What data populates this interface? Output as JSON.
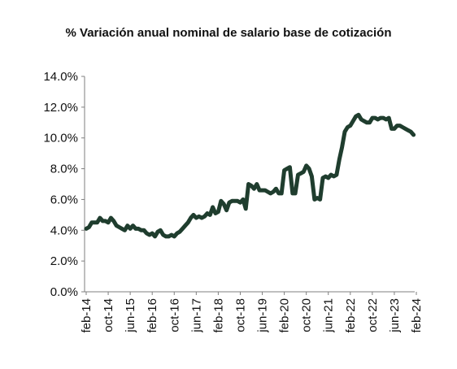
{
  "chart_data": {
    "type": "line",
    "title": "% Variación anual nominal de salario base de cotización",
    "xlabel": "",
    "ylabel": "",
    "ylim": [
      0,
      14
    ],
    "y_ticks": [
      "0.0%",
      "2.0%",
      "4.0%",
      "6.0%",
      "8.0%",
      "10.0%",
      "12.0%",
      "14.0%"
    ],
    "x_ticks": [
      "feb-14",
      "oct-14",
      "jun-15",
      "feb-16",
      "oct-16",
      "jun-17",
      "feb-18",
      "oct-18",
      "jun-19",
      "feb-20",
      "oct-20",
      "jun-21",
      "feb-22",
      "oct-22",
      "jun-23",
      "feb-24"
    ],
    "grid": false,
    "legend": "none",
    "series": [
      {
        "color": "#1f3d2e",
        "points": [
          [
            "feb-14",
            4.1
          ],
          [
            "mar-14",
            4.2
          ],
          [
            "abr-14",
            4.5
          ],
          [
            "may-14",
            4.5
          ],
          [
            "jun-14",
            4.5
          ],
          [
            "jul-14",
            4.8
          ],
          [
            "ago-14",
            4.6
          ],
          [
            "sep-14",
            4.6
          ],
          [
            "oct-14",
            4.5
          ],
          [
            "nov-14",
            4.8
          ],
          [
            "dic-14",
            4.6
          ],
          [
            "ene-15",
            4.3
          ],
          [
            "feb-15",
            4.2
          ],
          [
            "mar-15",
            4.1
          ],
          [
            "abr-15",
            4.0
          ],
          [
            "may-15",
            4.3
          ],
          [
            "jun-15",
            4.1
          ],
          [
            "jul-15",
            4.3
          ],
          [
            "ago-15",
            4.1
          ],
          [
            "sep-15",
            4.1
          ],
          [
            "oct-15",
            4.0
          ],
          [
            "nov-15",
            4.0
          ],
          [
            "dic-15",
            3.8
          ],
          [
            "ene-16",
            3.7
          ],
          [
            "feb-16",
            3.8
          ],
          [
            "mar-16",
            3.6
          ],
          [
            "abr-16",
            3.9
          ],
          [
            "may-16",
            4.0
          ],
          [
            "jun-16",
            3.7
          ],
          [
            "jul-16",
            3.6
          ],
          [
            "ago-16",
            3.6
          ],
          [
            "sep-16",
            3.7
          ],
          [
            "oct-16",
            3.6
          ],
          [
            "nov-16",
            3.8
          ],
          [
            "dic-16",
            3.9
          ],
          [
            "ene-17",
            4.1
          ],
          [
            "feb-17",
            4.3
          ],
          [
            "mar-17",
            4.5
          ],
          [
            "abr-17",
            4.8
          ],
          [
            "may-17",
            5.0
          ],
          [
            "jun-17",
            4.8
          ],
          [
            "jul-17",
            4.9
          ],
          [
            "ago-17",
            4.8
          ],
          [
            "sep-17",
            4.9
          ],
          [
            "oct-17",
            5.1
          ],
          [
            "nov-17",
            5.0
          ],
          [
            "dic-17",
            5.5
          ],
          [
            "ene-18",
            5.1
          ],
          [
            "feb-18",
            5.2
          ],
          [
            "mar-18",
            5.9
          ],
          [
            "abr-18",
            5.7
          ],
          [
            "may-18",
            5.3
          ],
          [
            "jun-18",
            5.8
          ],
          [
            "jul-18",
            5.9
          ],
          [
            "ago-18",
            5.9
          ],
          [
            "sep-18",
            5.9
          ],
          [
            "oct-18",
            5.8
          ],
          [
            "nov-18",
            6.0
          ],
          [
            "dic-18",
            5.4
          ],
          [
            "ene-19",
            7.0
          ],
          [
            "feb-19",
            6.9
          ],
          [
            "mar-19",
            6.7
          ],
          [
            "abr-19",
            7.0
          ],
          [
            "may-19",
            6.6
          ],
          [
            "jun-19",
            6.6
          ],
          [
            "jul-19",
            6.6
          ],
          [
            "ago-19",
            6.5
          ],
          [
            "sep-19",
            6.4
          ],
          [
            "oct-19",
            6.5
          ],
          [
            "nov-19",
            6.7
          ],
          [
            "dic-19",
            6.4
          ],
          [
            "ene-20",
            6.4
          ],
          [
            "feb-20",
            7.9
          ],
          [
            "mar-20",
            8.0
          ],
          [
            "abr-20",
            8.1
          ],
          [
            "may-20",
            6.4
          ],
          [
            "jun-20",
            6.4
          ],
          [
            "jul-20",
            7.6
          ],
          [
            "ago-20",
            7.7
          ],
          [
            "sep-20",
            7.8
          ],
          [
            "oct-20",
            8.2
          ],
          [
            "nov-20",
            8.0
          ],
          [
            "dic-20",
            7.5
          ],
          [
            "ene-21",
            6.0
          ],
          [
            "feb-21",
            6.1
          ],
          [
            "mar-21",
            6.0
          ],
          [
            "abr-21",
            7.4
          ],
          [
            "may-21",
            7.5
          ],
          [
            "jun-21",
            7.4
          ],
          [
            "jul-21",
            7.6
          ],
          [
            "ago-21",
            7.5
          ],
          [
            "sep-21",
            7.6
          ],
          [
            "oct-21",
            8.6
          ],
          [
            "nov-21",
            9.4
          ],
          [
            "dic-21",
            10.4
          ],
          [
            "ene-22",
            10.7
          ],
          [
            "feb-22",
            10.8
          ],
          [
            "mar-22",
            11.1
          ],
          [
            "abr-22",
            11.4
          ],
          [
            "may-22",
            11.5
          ],
          [
            "jun-22",
            11.2
          ],
          [
            "jul-22",
            11.1
          ],
          [
            "ago-22",
            11.0
          ],
          [
            "sep-22",
            11.0
          ],
          [
            "oct-22",
            11.3
          ],
          [
            "nov-22",
            11.3
          ],
          [
            "dic-22",
            11.2
          ],
          [
            "ene-23",
            11.3
          ],
          [
            "feb-23",
            11.3
          ],
          [
            "mar-23",
            11.2
          ],
          [
            "abr-23",
            11.3
          ],
          [
            "may-23",
            10.6
          ],
          [
            "jun-23",
            10.6
          ],
          [
            "jul-23",
            10.8
          ],
          [
            "ago-23",
            10.8
          ],
          [
            "sep-23",
            10.7
          ],
          [
            "oct-23",
            10.6
          ],
          [
            "nov-23",
            10.5
          ],
          [
            "dic-23",
            10.4
          ],
          [
            "ene-24",
            10.2
          ]
        ]
      }
    ]
  }
}
